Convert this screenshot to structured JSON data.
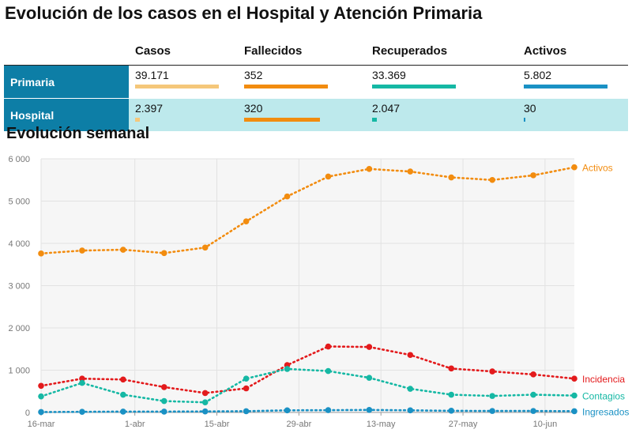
{
  "title": "Evolución de los casos en el Hospital y Atención Primaria",
  "summary": {
    "columns": [
      "Casos",
      "Fallecidos",
      "Recuperados",
      "Activos"
    ],
    "rows": [
      {
        "label": "Primaria",
        "cells": [
          {
            "value": "39.171",
            "fill": 1.0,
            "color": "#f5c77a"
          },
          {
            "value": "352",
            "fill": 1.0,
            "color": "#f28c0f"
          },
          {
            "value": "33.369",
            "fill": 1.0,
            "color": "#15b8a4"
          },
          {
            "value": "5.802",
            "fill": 1.0,
            "color": "#1a91c4"
          }
        ]
      },
      {
        "label": "Hospital",
        "cells": [
          {
            "value": "2.397",
            "fill": 0.06,
            "color": "#f5c77a"
          },
          {
            "value": "320",
            "fill": 0.91,
            "color": "#f28c0f"
          },
          {
            "value": "2.047",
            "fill": 0.06,
            "color": "#15b8a4"
          },
          {
            "value": "30",
            "fill": 0.01,
            "color": "#1a91c4"
          }
        ]
      }
    ]
  },
  "section_title": "Evolución semanal",
  "chart_data": {
    "type": "line",
    "x": [
      "2020-03-16",
      "2020-03-23",
      "2020-03-30",
      "2020-04-06",
      "2020-04-13",
      "2020-04-20",
      "2020-04-27",
      "2020-05-04",
      "2020-05-11",
      "2020-05-18",
      "2020-05-25",
      "2020-06-01",
      "2020-06-08",
      "2020-06-15"
    ],
    "x_tick_labels": [
      {
        "x": "2020-03-16",
        "label": "16-mar"
      },
      {
        "x": "2020-04-01",
        "label": "1-abr"
      },
      {
        "x": "2020-04-15",
        "label": "15-abr"
      },
      {
        "x": "2020-04-29",
        "label": "29-abr"
      },
      {
        "x": "2020-05-13",
        "label": "13-may"
      },
      {
        "x": "2020-05-27",
        "label": "27-may"
      },
      {
        "x": "2020-06-10",
        "label": "10-jun"
      }
    ],
    "ylim": [
      0,
      6000
    ],
    "y_ticks": [
      0,
      1000,
      2000,
      3000,
      4000,
      5000,
      6000
    ],
    "y_tick_labels": [
      "0",
      "1 000",
      "2 000",
      "3 000",
      "4 000",
      "5 000",
      "6 000"
    ],
    "grid": true,
    "legend": "inline labels at right end of each series",
    "series": [
      {
        "name": "Activos",
        "color": "#f28c0f",
        "values": [
          3760,
          3830,
          3850,
          3770,
          3900,
          4520,
          5110,
          5580,
          5760,
          5700,
          5560,
          5500,
          5610,
          5800
        ]
      },
      {
        "name": "Incidencia",
        "color": "#e31a1c",
        "values": [
          630,
          800,
          780,
          600,
          460,
          570,
          1120,
          1560,
          1550,
          1360,
          1040,
          970,
          900,
          800
        ]
      },
      {
        "name": "Contagios",
        "color": "#15b8a4",
        "values": [
          380,
          700,
          420,
          270,
          240,
          800,
          1030,
          980,
          820,
          560,
          420,
          390,
          420,
          400
        ]
      },
      {
        "name": "Ingresados",
        "color": "#1a91c4",
        "values": [
          10,
          15,
          20,
          20,
          25,
          30,
          50,
          55,
          60,
          50,
          40,
          35,
          35,
          30
        ]
      }
    ]
  }
}
